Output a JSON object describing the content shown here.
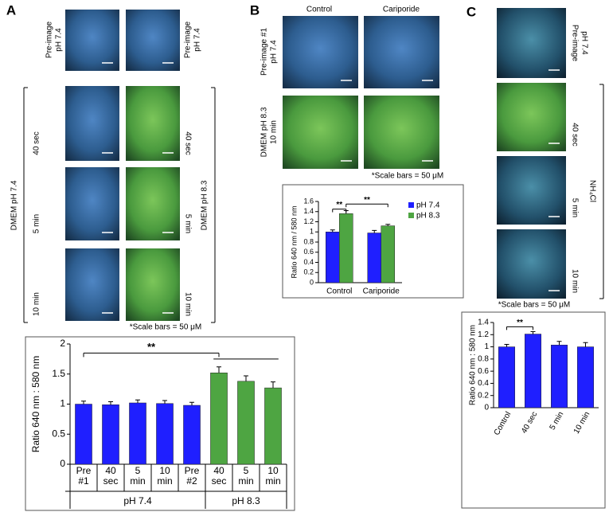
{
  "panels": [
    {
      "label": "A",
      "left_top": [
        "Pre-image",
        "pH 7.4"
      ],
      "right_top": [
        "Pre-image",
        "pH 7.4"
      ],
      "bracket_left": "DMEM  pH 7.4",
      "times_left": [
        "40 sec",
        "5 min",
        "10 min"
      ],
      "times_right": [
        "40 sec",
        "5 min",
        "10 min"
      ],
      "bracket_right": "DMEM  pH 8.3",
      "note": "*Scale bars = 50 μM"
    },
    {
      "label": "B",
      "columns": [
        "Control",
        "Cariporide"
      ],
      "row_labels": [
        [
          "Pre-image #1",
          "pH 7.4"
        ],
        [
          "DMEM  pH 8.3",
          "10 min"
        ]
      ],
      "note": "*Scale bars = 50 μM"
    },
    {
      "label": "C",
      "top": [
        "Pre-image",
        "pH 7.4"
      ],
      "times": [
        "40 sec",
        "5 min",
        "10 min"
      ],
      "bracket": "NH₄Cl",
      "note": "*Scale bars = 50 μM"
    }
  ],
  "chart_data": [
    {
      "type": "bar",
      "y_label": "Ratio 640 nm : 580 nm",
      "categories": [
        [
          "Pre",
          "#1"
        ],
        [
          "40",
          "sec"
        ],
        [
          "5",
          "min"
        ],
        [
          "10",
          "min"
        ],
        [
          "Pre",
          "#2"
        ],
        [
          "40",
          "sec"
        ],
        [
          "5",
          "min"
        ],
        [
          "10",
          "min"
        ]
      ],
      "values": [
        1.0,
        0.99,
        1.02,
        1.01,
        0.98,
        1.52,
        1.38,
        1.27
      ],
      "errors": [
        0.05,
        0.05,
        0.05,
        0.05,
        0.05,
        0.1,
        0.09,
        0.1
      ],
      "colors": [
        "#1f1fff",
        "#1f1fff",
        "#1f1fff",
        "#1f1fff",
        "#1f1fff",
        "#4ea542",
        "#4ea542",
        "#4ea542"
      ],
      "groups": [
        "pH 7.4",
        "pH 8.3"
      ],
      "annotation": "**",
      "ylim": [
        0,
        2
      ],
      "yticks": [
        0,
        0.5,
        1,
        1.5,
        2
      ]
    },
    {
      "type": "grouped-bar",
      "y_label": "Ratio 640 nm / 580 nm",
      "categories": [
        "Control",
        "Cariporide"
      ],
      "series": [
        {
          "name": "pH 7.4",
          "color": "#1f1fff",
          "values": [
            1.0,
            0.98
          ],
          "errors": [
            0.04,
            0.05
          ]
        },
        {
          "name": "pH 8.3",
          "color": "#4ea542",
          "values": [
            1.36,
            1.12
          ],
          "errors": [
            0.06,
            0.03
          ]
        }
      ],
      "annotations": [
        "**",
        "**"
      ],
      "ylim": [
        0,
        1.6
      ],
      "yticks": [
        0,
        0.2,
        0.4,
        0.6,
        0.8,
        1,
        1.2,
        1.4,
        1.6
      ]
    },
    {
      "type": "bar",
      "y_label": "Ratio 640 nm : 580 nm",
      "categories": [
        "Control",
        "40 sec",
        "5 min",
        "10 min"
      ],
      "values": [
        1.0,
        1.21,
        1.03,
        1.0
      ],
      "errors": [
        0.04,
        0.04,
        0.06,
        0.07
      ],
      "colors": [
        "#1f1fff",
        "#1f1fff",
        "#1f1fff",
        "#1f1fff"
      ],
      "annotation": "**",
      "ylim": [
        0,
        1.4
      ],
      "yticks": [
        0,
        0.2,
        0.4,
        0.6,
        0.8,
        1,
        1.2,
        1.4
      ]
    }
  ]
}
